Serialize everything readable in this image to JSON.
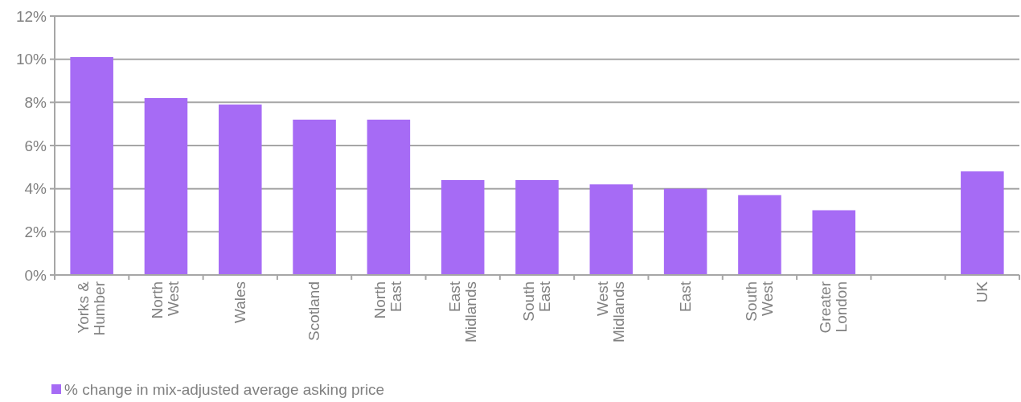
{
  "chart_data": {
    "type": "bar",
    "categories": [
      "Yorks & Humber",
      "North West",
      "Wales",
      "Scotland",
      "North East",
      "East Midlands",
      "South East",
      "West Midlands",
      "East",
      "South West",
      "Greater London",
      null,
      "UK"
    ],
    "series": [
      {
        "name": "% change in mix-adjusted average asking price",
        "color": "#a66bf5",
        "values": [
          10.1,
          8.2,
          7.9,
          7.2,
          7.2,
          4.4,
          4.4,
          4.2,
          4.0,
          3.7,
          3.0,
          null,
          4.8
        ]
      }
    ],
    "ylim": [
      0,
      12
    ],
    "yticks": [
      {
        "value": 0,
        "label": "0%"
      },
      {
        "value": 2,
        "label": "2%"
      },
      {
        "value": 4,
        "label": "4%"
      },
      {
        "value": 6,
        "label": "6%"
      },
      {
        "value": 8,
        "label": "8%"
      },
      {
        "value": 10,
        "label": "10%"
      },
      {
        "value": 12,
        "label": "12%"
      }
    ],
    "grid": "y",
    "legend": "bottom left"
  }
}
